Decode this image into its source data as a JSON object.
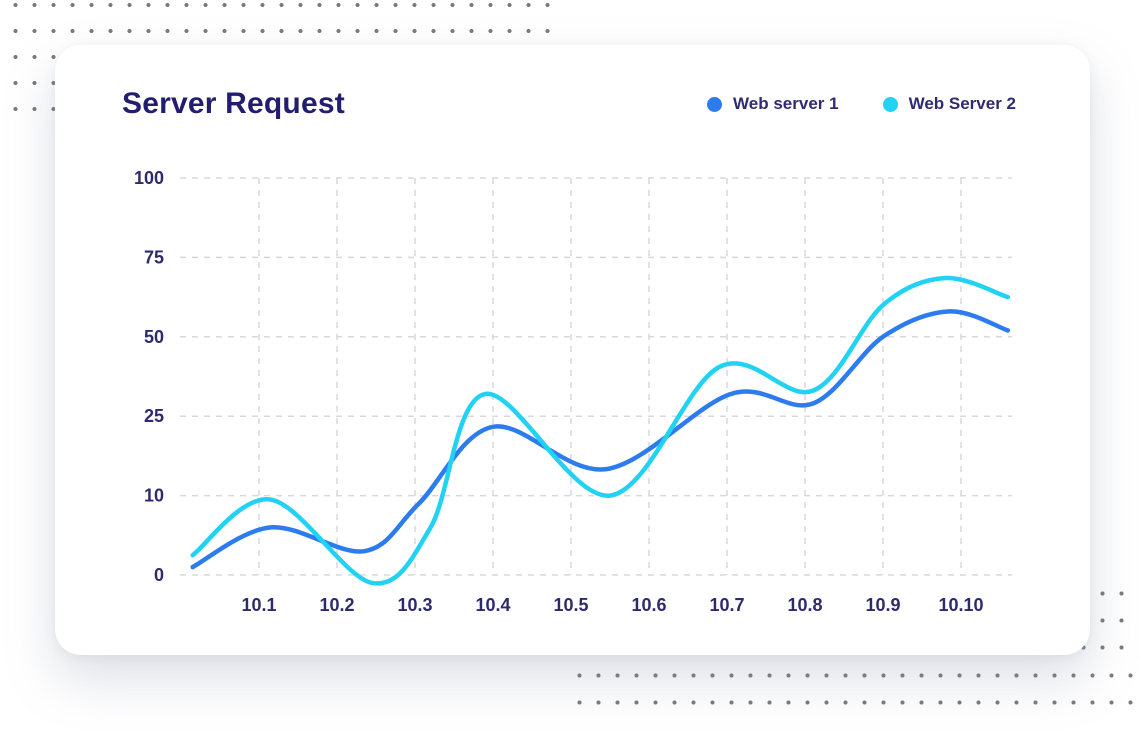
{
  "header": {
    "title": "Server Request"
  },
  "theme": {
    "title_color": "#221d6e",
    "tick_color": "#2e2a6e",
    "grid_color": "#d8d8dd",
    "series_blue": "#2d7cef",
    "series_cyan": "#21d2f3",
    "dot_pattern_color": "#7b7b7e",
    "card_background": "#ffffff"
  },
  "chart_data": {
    "type": "line",
    "title": "Server Request",
    "xlabel": "",
    "ylabel": "",
    "categories": [
      "10.1",
      "10.2",
      "10.3",
      "10.4",
      "10.5",
      "10.6",
      "10.7",
      "10.8",
      "10.9",
      "10.10"
    ],
    "y_ticks": [
      0,
      10,
      25,
      50,
      75,
      100
    ],
    "y_axis_note": "tick values are evenly spaced on screen despite non-linear increments",
    "grid": "dashed",
    "legend_position": "top-right",
    "line_style": "smooth",
    "series": [
      {
        "name": "Web server 1",
        "color": "#2d7cef",
        "values": [
          5.5,
          4,
          8.5,
          22.5,
          16,
          19,
          32,
          29,
          50,
          57.5
        ],
        "smooth_points": [
          {
            "x": -0.85,
            "y": 1
          },
          {
            "x": 0.15,
            "y": 6
          },
          {
            "x": 1.35,
            "y": 3
          },
          {
            "x": 2.05,
            "y": 9
          },
          {
            "x": 3.0,
            "y": 23
          },
          {
            "x": 4.45,
            "y": 15
          },
          {
            "x": 6.05,
            "y": 32
          },
          {
            "x": 7.1,
            "y": 29
          },
          {
            "x": 8.0,
            "y": 50
          },
          {
            "x": 8.85,
            "y": 58
          },
          {
            "x": 9.6,
            "y": 52
          }
        ]
      },
      {
        "name": "Web Server 2",
        "color": "#21d2f3",
        "values": [
          9,
          2,
          2.5,
          31.5,
          14,
          16,
          40,
          33,
          60,
          68
        ],
        "smooth_points": [
          {
            "x": -0.85,
            "y": 2.5
          },
          {
            "x": 0.15,
            "y": 9.5
          },
          {
            "x": 1.45,
            "y": -1
          },
          {
            "x": 2.2,
            "y": 6
          },
          {
            "x": 2.9,
            "y": 32
          },
          {
            "x": 4.5,
            "y": 10
          },
          {
            "x": 5.9,
            "y": 40.5
          },
          {
            "x": 7.1,
            "y": 33
          },
          {
            "x": 8.0,
            "y": 60
          },
          {
            "x": 8.8,
            "y": 68.5
          },
          {
            "x": 9.6,
            "y": 62.5
          }
        ]
      }
    ]
  }
}
